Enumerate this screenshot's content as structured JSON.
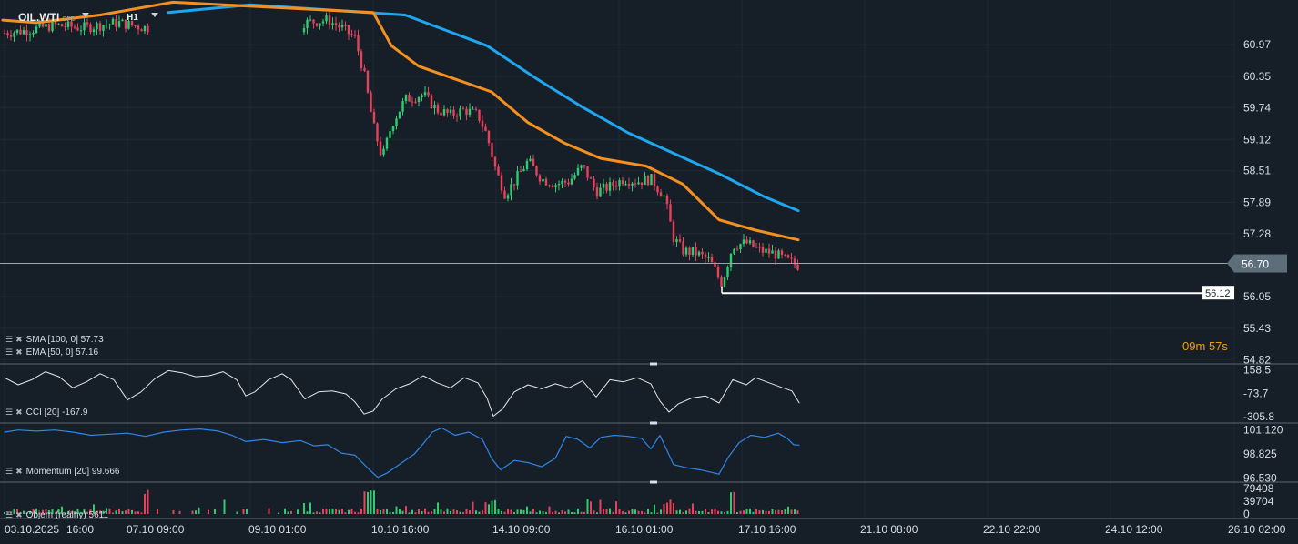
{
  "header": {
    "symbol": "OIL.WTI",
    "symbol_type": "CFD",
    "timeframe": "H1"
  },
  "colors": {
    "background": "#161f28",
    "up_candle": "#2ecc71",
    "down_candle": "#e8415b",
    "sma": "#1ea7f0",
    "ema": "#f5901e",
    "cci_line": "#e6e6e6",
    "momentum_line": "#2e86e8",
    "price_line": "#9aa5b1",
    "support_line": "#ffffff",
    "timer": "#f39c12"
  },
  "indicators": {
    "sma_label": "SMA [100,  0]  57.73",
    "ema_label": "EMA [50,  0]  57.16",
    "cci_label": "CCI [20]  -167.9",
    "momentum_label": "Momentum  [20]  99.666",
    "volume_label": "Objem (reálny)  5611"
  },
  "timer": {
    "minutes": "09",
    "m_unit": "m",
    "seconds": "57",
    "s_unit": "s"
  },
  "chart_data": {
    "type": "candlestick",
    "price_axis": {
      "ticks": [
        60.97,
        60.35,
        59.74,
        59.12,
        58.51,
        57.89,
        57.28,
        56.7,
        56.05,
        55.43,
        54.82
      ],
      "current_price": 56.7,
      "marked_level": 56.12
    },
    "x_labels": [
      "03.10.2025",
      "16:00",
      "07.10 09:00",
      "09.10 01:00",
      "10.10 16:00",
      "14.10 09:00",
      "16.10 01:00",
      "17.10 16:00",
      "21.10 08:00",
      "22.10 22:00",
      "24.10 12:00",
      "26.10 02:00"
    ],
    "price_path": [
      {
        "x": 5,
        "y": 61.2
      },
      {
        "x": 30,
        "y": 61.25
      },
      {
        "x": 60,
        "y": 61.35
      },
      {
        "x": 90,
        "y": 61.3
      },
      {
        "x": 130,
        "y": 61.4
      },
      {
        "x": 160,
        "y": 61.3
      },
      {
        "x": 335,
        "y": 61.4
      },
      {
        "x": 360,
        "y": 61.45
      },
      {
        "x": 375,
        "y": 61.3
      },
      {
        "x": 390,
        "y": 61.1
      },
      {
        "x": 400,
        "y": 60.4
      },
      {
        "x": 410,
        "y": 59.4
      },
      {
        "x": 420,
        "y": 58.75
      },
      {
        "x": 430,
        "y": 59.4
      },
      {
        "x": 445,
        "y": 59.9
      },
      {
        "x": 465,
        "y": 60.0
      },
      {
        "x": 480,
        "y": 59.7
      },
      {
        "x": 495,
        "y": 59.6
      },
      {
        "x": 510,
        "y": 59.7
      },
      {
        "x": 525,
        "y": 59.6
      },
      {
        "x": 535,
        "y": 59.2
      },
      {
        "x": 545,
        "y": 58.5
      },
      {
        "x": 555,
        "y": 58.05
      },
      {
        "x": 565,
        "y": 58.3
      },
      {
        "x": 580,
        "y": 58.7
      },
      {
        "x": 595,
        "y": 58.35
      },
      {
        "x": 610,
        "y": 58.25
      },
      {
        "x": 625,
        "y": 58.3
      },
      {
        "x": 640,
        "y": 58.6
      },
      {
        "x": 655,
        "y": 58.1
      },
      {
        "x": 670,
        "y": 58.2
      },
      {
        "x": 685,
        "y": 58.35
      },
      {
        "x": 700,
        "y": 58.3
      },
      {
        "x": 715,
        "y": 58.35
      },
      {
        "x": 730,
        "y": 58.0
      },
      {
        "x": 740,
        "y": 57.2
      },
      {
        "x": 750,
        "y": 56.95
      },
      {
        "x": 765,
        "y": 56.9
      },
      {
        "x": 780,
        "y": 56.75
      },
      {
        "x": 793,
        "y": 56.3
      },
      {
        "x": 805,
        "y": 57.05
      },
      {
        "x": 820,
        "y": 57.1
      },
      {
        "x": 835,
        "y": 56.95
      },
      {
        "x": 850,
        "y": 56.9
      },
      {
        "x": 865,
        "y": 56.75
      },
      {
        "x": 878,
        "y": 56.65
      }
    ],
    "sma_path": [
      {
        "x": 185,
        "y": 61.6
      },
      {
        "x": 275,
        "y": 61.75
      },
      {
        "x": 445,
        "y": 61.55
      },
      {
        "x": 490,
        "y": 61.25
      },
      {
        "x": 535,
        "y": 60.95
      },
      {
        "x": 590,
        "y": 60.3
      },
      {
        "x": 640,
        "y": 59.75
      },
      {
        "x": 690,
        "y": 59.25
      },
      {
        "x": 740,
        "y": 58.85
      },
      {
        "x": 790,
        "y": 58.45
      },
      {
        "x": 840,
        "y": 58.0
      },
      {
        "x": 877,
        "y": 57.73
      }
    ],
    "ema_path": [
      {
        "x": 3,
        "y": 61.45
      },
      {
        "x": 40,
        "y": 61.4
      },
      {
        "x": 110,
        "y": 61.55
      },
      {
        "x": 190,
        "y": 61.8
      },
      {
        "x": 410,
        "y": 61.6
      },
      {
        "x": 430,
        "y": 60.95
      },
      {
        "x": 460,
        "y": 60.55
      },
      {
        "x": 500,
        "y": 60.3
      },
      {
        "x": 540,
        "y": 60.05
      },
      {
        "x": 580,
        "y": 59.45
      },
      {
        "x": 620,
        "y": 59.05
      },
      {
        "x": 660,
        "y": 58.75
      },
      {
        "x": 710,
        "y": 58.6
      },
      {
        "x": 750,
        "y": 58.25
      },
      {
        "x": 790,
        "y": 57.55
      },
      {
        "x": 830,
        "y": 57.35
      },
      {
        "x": 877,
        "y": 57.16
      }
    ],
    "cci": {
      "ticks": [
        158.5,
        -73.7,
        -305.8
      ],
      "path": [
        {
          "x": 5,
          "y": 80
        },
        {
          "x": 20,
          "y": 10
        },
        {
          "x": 35,
          "y": 60
        },
        {
          "x": 50,
          "y": 140
        },
        {
          "x": 65,
          "y": 90
        },
        {
          "x": 80,
          "y": -20
        },
        {
          "x": 95,
          "y": 40
        },
        {
          "x": 110,
          "y": 120
        },
        {
          "x": 125,
          "y": 60
        },
        {
          "x": 140,
          "y": -140
        },
        {
          "x": 155,
          "y": -60
        },
        {
          "x": 170,
          "y": 70
        },
        {
          "x": 185,
          "y": 150
        },
        {
          "x": 200,
          "y": 130
        },
        {
          "x": 215,
          "y": 90
        },
        {
          "x": 230,
          "y": 100
        },
        {
          "x": 245,
          "y": 140
        },
        {
          "x": 260,
          "y": 60
        },
        {
          "x": 270,
          "y": -100
        },
        {
          "x": 280,
          "y": -60
        },
        {
          "x": 295,
          "y": 60
        },
        {
          "x": 310,
          "y": 120
        },
        {
          "x": 320,
          "y": 60
        },
        {
          "x": 335,
          "y": -130
        },
        {
          "x": 350,
          "y": -60
        },
        {
          "x": 365,
          "y": -50
        },
        {
          "x": 380,
          "y": -80
        },
        {
          "x": 390,
          "y": -160
        },
        {
          "x": 400,
          "y": -280
        },
        {
          "x": 410,
          "y": -250
        },
        {
          "x": 420,
          "y": -130
        },
        {
          "x": 435,
          "y": -30
        },
        {
          "x": 450,
          "y": 20
        },
        {
          "x": 465,
          "y": 100
        },
        {
          "x": 480,
          "y": 30
        },
        {
          "x": 495,
          "y": -20
        },
        {
          "x": 510,
          "y": 80
        },
        {
          "x": 525,
          "y": 30
        },
        {
          "x": 535,
          "y": -120
        },
        {
          "x": 542,
          "y": -300
        },
        {
          "x": 552,
          "y": -230
        },
        {
          "x": 565,
          "y": -60
        },
        {
          "x": 580,
          "y": 10
        },
        {
          "x": 595,
          "y": -30
        },
        {
          "x": 610,
          "y": 20
        },
        {
          "x": 625,
          "y": -20
        },
        {
          "x": 640,
          "y": 50
        },
        {
          "x": 655,
          "y": -110
        },
        {
          "x": 670,
          "y": 60
        },
        {
          "x": 685,
          "y": 40
        },
        {
          "x": 700,
          "y": 80
        },
        {
          "x": 715,
          "y": 20
        },
        {
          "x": 725,
          "y": -150
        },
        {
          "x": 735,
          "y": -260
        },
        {
          "x": 745,
          "y": -180
        },
        {
          "x": 760,
          "y": -120
        },
        {
          "x": 775,
          "y": -100
        },
        {
          "x": 790,
          "y": -170
        },
        {
          "x": 805,
          "y": 60
        },
        {
          "x": 820,
          "y": 10
        },
        {
          "x": 830,
          "y": 80
        },
        {
          "x": 845,
          "y": 30
        },
        {
          "x": 860,
          "y": -20
        },
        {
          "x": 870,
          "y": -50
        },
        {
          "x": 878,
          "y": -167.9
        }
      ]
    },
    "momentum": {
      "ticks": [
        101.12,
        98.825,
        96.53
      ],
      "path": [
        {
          "x": 5,
          "y": 100.9
        },
        {
          "x": 20,
          "y": 101.1
        },
        {
          "x": 40,
          "y": 101.0
        },
        {
          "x": 60,
          "y": 101.1
        },
        {
          "x": 80,
          "y": 100.9
        },
        {
          "x": 100,
          "y": 100.6
        },
        {
          "x": 120,
          "y": 100.7
        },
        {
          "x": 140,
          "y": 100.8
        },
        {
          "x": 160,
          "y": 100.5
        },
        {
          "x": 180,
          "y": 100.9
        },
        {
          "x": 200,
          "y": 101.1
        },
        {
          "x": 220,
          "y": 101.2
        },
        {
          "x": 240,
          "y": 101.0
        },
        {
          "x": 255,
          "y": 100.6
        },
        {
          "x": 270,
          "y": 100.0
        },
        {
          "x": 290,
          "y": 100.2
        },
        {
          "x": 310,
          "y": 99.9
        },
        {
          "x": 330,
          "y": 100.1
        },
        {
          "x": 345,
          "y": 99.6
        },
        {
          "x": 360,
          "y": 99.7
        },
        {
          "x": 375,
          "y": 98.9
        },
        {
          "x": 390,
          "y": 98.7
        },
        {
          "x": 405,
          "y": 97.4
        },
        {
          "x": 415,
          "y": 96.6
        },
        {
          "x": 425,
          "y": 97.0
        },
        {
          "x": 440,
          "y": 97.9
        },
        {
          "x": 455,
          "y": 98.8
        },
        {
          "x": 465,
          "y": 99.8
        },
        {
          "x": 475,
          "y": 100.9
        },
        {
          "x": 485,
          "y": 101.3
        },
        {
          "x": 500,
          "y": 100.6
        },
        {
          "x": 515,
          "y": 100.9
        },
        {
          "x": 530,
          "y": 100.2
        },
        {
          "x": 540,
          "y": 98.4
        },
        {
          "x": 550,
          "y": 97.3
        },
        {
          "x": 565,
          "y": 98.2
        },
        {
          "x": 580,
          "y": 98.0
        },
        {
          "x": 595,
          "y": 97.6
        },
        {
          "x": 610,
          "y": 98.4
        },
        {
          "x": 622,
          "y": 100.5
        },
        {
          "x": 635,
          "y": 100.2
        },
        {
          "x": 648,
          "y": 99.4
        },
        {
          "x": 660,
          "y": 100.4
        },
        {
          "x": 675,
          "y": 100.6
        },
        {
          "x": 690,
          "y": 100.5
        },
        {
          "x": 705,
          "y": 100.3
        },
        {
          "x": 715,
          "y": 99.3
        },
        {
          "x": 725,
          "y": 100.6
        },
        {
          "x": 740,
          "y": 97.8
        },
        {
          "x": 755,
          "y": 97.5
        },
        {
          "x": 770,
          "y": 97.3
        },
        {
          "x": 790,
          "y": 96.9
        },
        {
          "x": 800,
          "y": 98.5
        },
        {
          "x": 812,
          "y": 99.9
        },
        {
          "x": 825,
          "y": 100.6
        },
        {
          "x": 840,
          "y": 100.4
        },
        {
          "x": 855,
          "y": 100.8
        },
        {
          "x": 865,
          "y": 100.3
        },
        {
          "x": 872,
          "y": 99.7
        },
        {
          "x": 878,
          "y": 99.666
        }
      ]
    },
    "volume": {
      "ticks": [
        79408,
        39704,
        0
      ],
      "last": 5611
    }
  }
}
